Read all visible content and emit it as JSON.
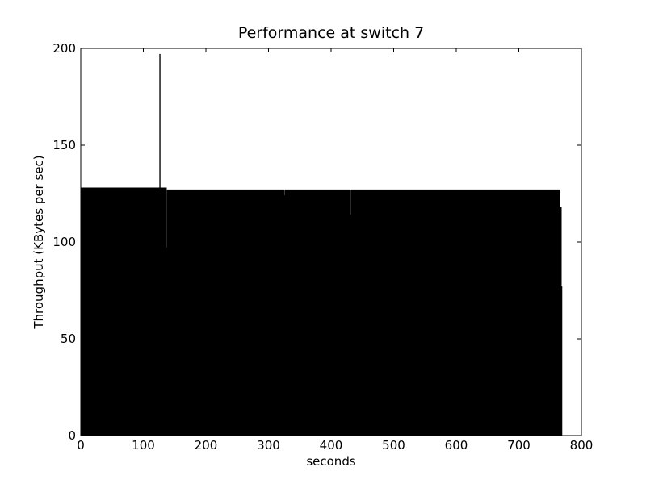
{
  "chart_data": {
    "type": "histogram",
    "title": "Performance at switch 7",
    "x_label": "seconds",
    "y_label": "Throughput (KBytes per sec)",
    "bins": [
      0,
      126,
      127,
      137,
      138,
      325,
      326,
      431,
      432,
      766,
      768,
      769
    ],
    "values": [
      128,
      197,
      128,
      97,
      127,
      124,
      127,
      114,
      127,
      118,
      77
    ],
    "color": "#000000",
    "xlim": [
      0,
      800
    ],
    "xticks": [
      0,
      100,
      200,
      300,
      400,
      500,
      600,
      700,
      800
    ],
    "ylim": [
      0,
      200
    ],
    "yticks": [
      0,
      50,
      100,
      150,
      200
    ],
    "grid": false
  }
}
